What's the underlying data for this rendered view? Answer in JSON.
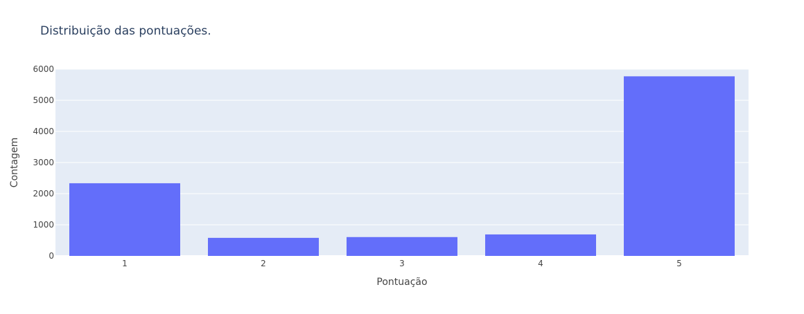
{
  "chart_data": {
    "type": "bar",
    "title": "Distribuição das pontuações.",
    "xlabel": "Pontuação",
    "ylabel": "Contagem",
    "categories": [
      "1",
      "2",
      "3",
      "4",
      "5"
    ],
    "values": [
      2335,
      580,
      605,
      690,
      5770
    ],
    "ylim": [
      0,
      6000
    ],
    "yticks": [
      0,
      1000,
      2000,
      3000,
      4000,
      5000,
      6000
    ],
    "grid": true,
    "colors": {
      "bar": "#636efa",
      "plot_bg": "#e5ecf6",
      "grid": "#ffffff",
      "text": "#444444",
      "title": "#2a3f5f"
    }
  }
}
